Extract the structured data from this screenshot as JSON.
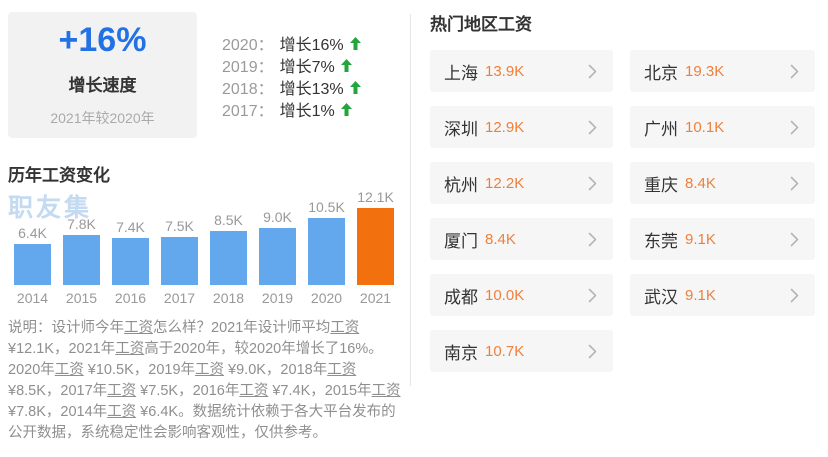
{
  "growth_summary": {
    "value": "+16%",
    "label": "增长速度",
    "sublabel": "2021年较2020年"
  },
  "yearly_growth": [
    {
      "year": "2020",
      "text": "增长16%"
    },
    {
      "year": "2019",
      "text": "增长7%"
    },
    {
      "year": "2018",
      "text": "增长13%"
    },
    {
      "year": "2017",
      "text": "增长1%"
    }
  ],
  "chart_section": {
    "title": "历年工资变化",
    "watermark": "职友集"
  },
  "chart_data": {
    "type": "bar",
    "title": "历年工资变化",
    "categories": [
      "2014",
      "2015",
      "2016",
      "2017",
      "2018",
      "2019",
      "2020",
      "2021"
    ],
    "values": [
      6.4,
      7.8,
      7.4,
      7.5,
      8.5,
      9.0,
      10.5,
      12.1
    ],
    "labels": [
      "6.4K",
      "7.8K",
      "7.4K",
      "7.5K",
      "8.5K",
      "9.0K",
      "10.5K",
      "12.1K"
    ],
    "unit": "K",
    "ylim": [
      0,
      12.1
    ],
    "bar_color": "#63a8ec",
    "highlight_color": "#f2700e",
    "highlight_index": 7,
    "grid": false,
    "legend": false
  },
  "description": {
    "segments": [
      {
        "t": "说明：设计师今年",
        "u": false
      },
      {
        "t": "工资",
        "u": true
      },
      {
        "t": "怎么样？2021年设计师平均",
        "u": false
      },
      {
        "t": "工资",
        "u": true
      },
      {
        "t": " ¥12.1K，2021年",
        "u": false
      },
      {
        "t": "工资",
        "u": true
      },
      {
        "t": "高于2020年，较2020年增长了16%。2020年",
        "u": false
      },
      {
        "t": "工资",
        "u": true
      },
      {
        "t": " ¥10.5K，2019年",
        "u": false
      },
      {
        "t": "工资",
        "u": true
      },
      {
        "t": " ¥9.0K，2018年",
        "u": false
      },
      {
        "t": "工资",
        "u": true
      },
      {
        "t": " ¥8.5K，2017年",
        "u": false
      },
      {
        "t": "工资",
        "u": true
      },
      {
        "t": " ¥7.5K，2016年",
        "u": false
      },
      {
        "t": "工资",
        "u": true
      },
      {
        "t": " ¥7.4K，2015年",
        "u": false
      },
      {
        "t": "工资",
        "u": true
      },
      {
        "t": " ¥7.8K，2014年",
        "u": false
      },
      {
        "t": "工资",
        "u": true
      },
      {
        "t": " ¥6.4K。数据统计依赖于各大平台发布的公开数据，系统稳定性会影响客观性，仅供参考。",
        "u": false
      }
    ]
  },
  "regions": {
    "title": "热门地区工资",
    "items": [
      {
        "city": "上海",
        "salary": "13.9K"
      },
      {
        "city": "北京",
        "salary": "19.3K"
      },
      {
        "city": "深圳",
        "salary": "12.9K"
      },
      {
        "city": "广州",
        "salary": "10.1K"
      },
      {
        "city": "杭州",
        "salary": "12.2K"
      },
      {
        "city": "重庆",
        "salary": "8.4K"
      },
      {
        "city": "厦门",
        "salary": "8.4K"
      },
      {
        "city": "东莞",
        "salary": "9.1K"
      },
      {
        "city": "成都",
        "salary": "10.0K"
      },
      {
        "city": "武汉",
        "salary": "9.1K"
      },
      {
        "city": "南京",
        "salary": "10.7K"
      }
    ]
  },
  "colors": {
    "accent_blue": "#2272e5",
    "arrow_green": "#22a63c",
    "bar_blue": "#63a8ec",
    "bar_orange": "#f2700e",
    "salary_orange": "#ee803c",
    "card_bg": "#f6f6f6",
    "text_dark": "#333333",
    "text_gray": "#999999"
  }
}
